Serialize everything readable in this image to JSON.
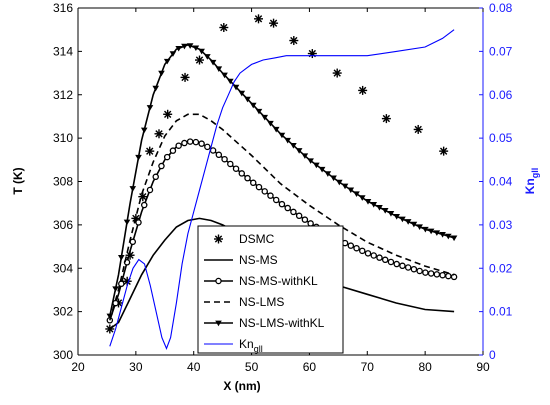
{
  "chart_data": {
    "type": "line",
    "title": "",
    "xlabel": "X (nm)",
    "ylabel": "T (K)",
    "y2label": {
      "main": "Kn",
      "sub": "gll"
    },
    "xlim": [
      20,
      90
    ],
    "ylim": [
      300,
      316
    ],
    "y2lim": [
      0,
      0.08
    ],
    "xticks": [
      "20",
      "30",
      "40",
      "50",
      "60",
      "70",
      "80",
      "90"
    ],
    "yticks": [
      "300",
      "302",
      "304",
      "306",
      "308",
      "310",
      "312",
      "314",
      "316"
    ],
    "y2ticks": [
      "0",
      "0.01",
      "0.02",
      "0.03",
      "0.04",
      "0.05",
      "0.06",
      "0.07",
      "0.08"
    ],
    "legend_position": "lower-center",
    "colors": {
      "black": "#000000",
      "blue": "#0000ff",
      "right_axis": "#1a1aff"
    },
    "series": [
      {
        "name": "DSMC",
        "style": "asterisk-markers",
        "axis": "left",
        "x": [
          25.5,
          27.0,
          28.5,
          29.0,
          30.0,
          31.2,
          32.4,
          34.0,
          35.5,
          38.5,
          41.0,
          45.2,
          51.2,
          53.8,
          57.3,
          60.5,
          64.8,
          69.2,
          73.3,
          78.8,
          83.2
        ],
        "y": [
          301.2,
          302.4,
          303.4,
          304.6,
          306.3,
          307.3,
          309.4,
          310.2,
          311.1,
          312.8,
          313.6,
          315.1,
          315.5,
          315.3,
          314.5,
          313.9,
          313.0,
          312.2,
          310.9,
          310.4,
          309.4
        ]
      },
      {
        "name": "NS-MS",
        "style": "solid",
        "axis": "left",
        "x": [
          25.5,
          27,
          29,
          31,
          33,
          35,
          37,
          39,
          41,
          43,
          45,
          50,
          55,
          60,
          65,
          70,
          75,
          80,
          85
        ],
        "y": [
          301.2,
          301.5,
          302.6,
          303.7,
          304.6,
          305.3,
          305.9,
          306.2,
          306.3,
          306.2,
          306.0,
          305.3,
          304.5,
          303.8,
          303.2,
          302.8,
          302.4,
          302.1,
          302.0
        ]
      },
      {
        "name": "NS-MS-withKL",
        "style": "solid-circle-markers",
        "axis": "left",
        "x": [
          25.5,
          27,
          29,
          31,
          33,
          35,
          37,
          39,
          41,
          43,
          45,
          50,
          55,
          60,
          65,
          70,
          75,
          80,
          85
        ],
        "y": [
          301.6,
          302.8,
          304.8,
          306.6,
          308.0,
          309.0,
          309.6,
          309.85,
          309.8,
          309.5,
          309.1,
          308.0,
          307.0,
          306.1,
          305.3,
          304.7,
          304.2,
          303.8,
          303.6
        ]
      },
      {
        "name": "NS-LMS",
        "style": "dashed",
        "axis": "left",
        "x": [
          25.5,
          27,
          29,
          31,
          33,
          35,
          37,
          39,
          41,
          43,
          45,
          50,
          55,
          60,
          65,
          70,
          75,
          80,
          85
        ],
        "y": [
          301.6,
          303.0,
          305.3,
          307.4,
          308.9,
          310.1,
          310.8,
          311.1,
          311.1,
          310.8,
          310.4,
          309.2,
          307.9,
          306.9,
          306.0,
          305.2,
          304.6,
          304.1,
          303.7
        ]
      },
      {
        "name": "NS-LMS-withKL",
        "style": "solid-triangle-markers",
        "axis": "left",
        "x": [
          25.5,
          27,
          29,
          31,
          33,
          35,
          37,
          39,
          41,
          43,
          45,
          50,
          55,
          60,
          65,
          70,
          75,
          80,
          85
        ],
        "y": [
          301.8,
          303.7,
          307.0,
          309.9,
          312.0,
          313.4,
          314.1,
          314.3,
          314.1,
          313.6,
          313.0,
          311.6,
          310.2,
          309.0,
          308.0,
          307.1,
          306.4,
          305.8,
          305.4
        ]
      },
      {
        "name": "Kn",
        "name_sub": "gll",
        "style": "solid-blue",
        "axis": "right",
        "x": [
          25.5,
          26.5,
          27.5,
          28.5,
          29.5,
          30.5,
          31.5,
          32.5,
          33.5,
          34.5,
          35.3,
          36.0,
          37.0,
          38.0,
          39.0,
          40.0,
          41.0,
          42.0,
          43.0,
          44.0,
          45.0,
          46.0,
          47.0,
          48.0,
          49.0,
          50.0,
          52.0,
          54.0,
          56.0,
          58.0,
          60.0,
          65.0,
          70.0,
          75.0,
          80.0,
          83.0,
          85.0
        ],
        "y": [
          0.002,
          0.006,
          0.011,
          0.016,
          0.02,
          0.022,
          0.021,
          0.016,
          0.01,
          0.004,
          0.0015,
          0.004,
          0.012,
          0.021,
          0.028,
          0.033,
          0.038,
          0.043,
          0.048,
          0.053,
          0.057,
          0.06,
          0.063,
          0.065,
          0.066,
          0.067,
          0.068,
          0.0685,
          0.069,
          0.069,
          0.069,
          0.069,
          0.069,
          0.07,
          0.071,
          0.073,
          0.075
        ]
      }
    ]
  }
}
